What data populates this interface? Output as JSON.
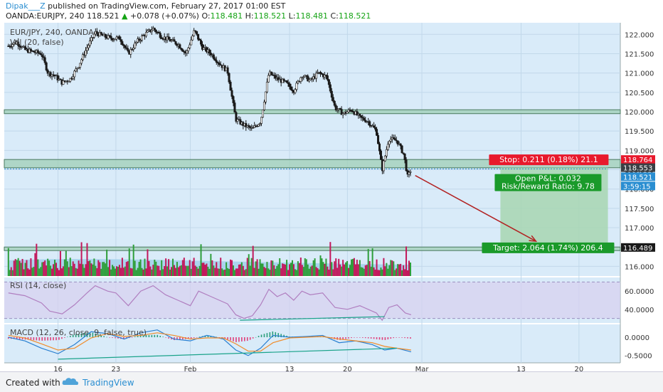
{
  "header": {
    "author": "Dipak___Z",
    "published": " published on TradingView.com, February 27, 2017 01:00 EST",
    "symbol": "OANDA:EURJPY, 240",
    "last": "118.521",
    "change": "+0.078 (+0.07%)",
    "o_label": "O:",
    "o": "118.481",
    "h_label": "H:",
    "h": "118.521",
    "l_label": "L:",
    "l": "118.481",
    "c_label": "C:",
    "c": "118.521"
  },
  "legend": {
    "main": "EUR/JPY, 240, OANDA",
    "vol": "Vol (20, false)",
    "rsi": "RSI (14, close)",
    "macd": "MACD (12, 26, close, 9, false, true)"
  },
  "labels": {
    "stop": "Stop: 0.211 (0.18%) 21.1",
    "pnl": "Open P&L: 0.032",
    "rr": "Risk/Reward Ratio: 9.78",
    "target": "Target: 2.064 (1.74%) 206.4",
    "badge_stop": "118.764",
    "badge_entry": "118.553",
    "badge_last": "118.521",
    "badge_timer": "3:59:15",
    "badge_target": "116.489"
  },
  "footer": {
    "created": "Created with",
    "brand": "TradingView"
  },
  "colors": {
    "pane_bg": "#d9ebf9",
    "zone": "#9fcfb6",
    "candle": "#1a1a1a",
    "vol_up": "#2e9e3a",
    "vol_down": "#c2185b",
    "vol_ma": "#9ed0ea",
    "rsi_line": "#b07fc0",
    "rsi_band": "#d7d0f0",
    "macd_line": "#2a7fd0",
    "signal_line": "#f08c2a",
    "stop_box": "#e8192c",
    "target_box": "#1a9a2a",
    "target_zone": "#a7d6b2",
    "arrow": "#b22222"
  },
  "chart_data": {
    "type": "candlestick",
    "symbol": "EUR/JPY",
    "timeframe": "240",
    "price_axis": {
      "ticks": [
        122.0,
        121.5,
        121.0,
        120.5,
        120.0,
        119.5,
        119.0,
        118.5,
        118.0,
        117.5,
        117.0,
        116.5,
        116.0
      ],
      "labels": [
        "122.000",
        "121.500",
        "121.000",
        "120.500",
        "120.000",
        "119.500",
        "119.000",
        "118.500",
        "118.000",
        "117.500",
        "117.000",
        "116.500",
        "116.000"
      ]
    },
    "x_tick_labels": [
      "16",
      "23",
      "Feb",
      "13",
      "20",
      "Mar",
      "13",
      "20"
    ],
    "x_tick_positions": [
      16,
      23,
      32,
      44,
      51,
      60,
      72,
      79
    ],
    "range": {
      "x": [
        9.5,
        84
      ],
      "price": [
        115.75,
        122.3
      ]
    },
    "close_path": [
      {
        "x": 10,
        "y": 121.7
      },
      {
        "x": 11,
        "y": 121.8
      },
      {
        "x": 12,
        "y": 121.6
      },
      {
        "x": 13,
        "y": 121.55
      },
      {
        "x": 14,
        "y": 121.5
      },
      {
        "x": 14.8,
        "y": 121.0
      },
      {
        "x": 15.5,
        "y": 120.95
      },
      {
        "x": 16.5,
        "y": 120.75
      },
      {
        "x": 17.5,
        "y": 120.85
      },
      {
        "x": 18.5,
        "y": 121.2
      },
      {
        "x": 19.5,
        "y": 121.65
      },
      {
        "x": 20.5,
        "y": 122.05
      },
      {
        "x": 21.5,
        "y": 121.95
      },
      {
        "x": 22.5,
        "y": 121.9
      },
      {
        "x": 23.5,
        "y": 121.9
      },
      {
        "x": 24.5,
        "y": 121.5
      },
      {
        "x": 25.5,
        "y": 121.8
      },
      {
        "x": 26.5,
        "y": 122.0
      },
      {
        "x": 27.5,
        "y": 122.15
      },
      {
        "x": 28.5,
        "y": 121.95
      },
      {
        "x": 29.5,
        "y": 121.85
      },
      {
        "x": 30.5,
        "y": 121.75
      },
      {
        "x": 31.5,
        "y": 121.5
      },
      {
        "x": 32.5,
        "y": 122.1
      },
      {
        "x": 33.5,
        "y": 121.65
      },
      {
        "x": 34.5,
        "y": 121.5
      },
      {
        "x": 35.5,
        "y": 121.25
      },
      {
        "x": 36.5,
        "y": 121.05
      },
      {
        "x": 37.5,
        "y": 119.8
      },
      {
        "x": 38.5,
        "y": 119.65
      },
      {
        "x": 39.5,
        "y": 119.55
      },
      {
        "x": 40.5,
        "y": 119.75
      },
      {
        "x": 41.5,
        "y": 121.0
      },
      {
        "x": 42.5,
        "y": 120.85
      },
      {
        "x": 43.5,
        "y": 120.75
      },
      {
        "x": 44.5,
        "y": 120.55
      },
      {
        "x": 45.5,
        "y": 120.95
      },
      {
        "x": 46.5,
        "y": 120.8
      },
      {
        "x": 47.5,
        "y": 121.0
      },
      {
        "x": 48.5,
        "y": 120.9
      },
      {
        "x": 49.5,
        "y": 120.1
      },
      {
        "x": 50.5,
        "y": 119.95
      },
      {
        "x": 51.5,
        "y": 120.05
      },
      {
        "x": 52.5,
        "y": 119.85
      },
      {
        "x": 53.5,
        "y": 119.75
      },
      {
        "x": 54.5,
        "y": 119.5
      },
      {
        "x": 55.2,
        "y": 118.5
      },
      {
        "x": 56.0,
        "y": 119.3
      },
      {
        "x": 57.0,
        "y": 119.25
      },
      {
        "x": 57.8,
        "y": 118.9
      },
      {
        "x": 58.3,
        "y": 118.3
      },
      {
        "x": 58.7,
        "y": 118.52
      }
    ],
    "zones": [
      {
        "from": 119.95,
        "to": 120.05
      },
      {
        "from": 118.55,
        "to": 118.764
      },
      {
        "from": 116.45,
        "to": 116.5
      }
    ],
    "position": {
      "entry": 118.553,
      "stop": 118.764,
      "target": 116.489,
      "last": 118.521,
      "start_x": 69.5,
      "end_x": 82.5
    },
    "arrow": {
      "from": {
        "x": 59.2,
        "y": 118.35
      },
      "to": {
        "x": 73.8,
        "y": 116.65
      }
    },
    "rsi": {
      "axis_ticks": [
        60,
        40
      ],
      "axis_labels": [
        "60.0000",
        "40.0000"
      ],
      "band": [
        30,
        70
      ],
      "range": [
        25,
        75
      ],
      "path": [
        {
          "x": 10,
          "y": 58
        },
        {
          "x": 12,
          "y": 55
        },
        {
          "x": 14,
          "y": 47
        },
        {
          "x": 15,
          "y": 38
        },
        {
          "x": 16.5,
          "y": 35
        },
        {
          "x": 18,
          "y": 45
        },
        {
          "x": 19.5,
          "y": 58
        },
        {
          "x": 20.5,
          "y": 66
        },
        {
          "x": 22,
          "y": 60
        },
        {
          "x": 23,
          "y": 58
        },
        {
          "x": 24.5,
          "y": 44
        },
        {
          "x": 26,
          "y": 60
        },
        {
          "x": 27.5,
          "y": 66
        },
        {
          "x": 29,
          "y": 56
        },
        {
          "x": 30.5,
          "y": 50
        },
        {
          "x": 32,
          "y": 44
        },
        {
          "x": 33,
          "y": 60
        },
        {
          "x": 34.5,
          "y": 54
        },
        {
          "x": 35.5,
          "y": 50
        },
        {
          "x": 36.5,
          "y": 46
        },
        {
          "x": 37.5,
          "y": 34
        },
        {
          "x": 38.5,
          "y": 30
        },
        {
          "x": 39.5,
          "y": 33
        },
        {
          "x": 40.5,
          "y": 45
        },
        {
          "x": 41.5,
          "y": 62
        },
        {
          "x": 42.5,
          "y": 54
        },
        {
          "x": 43.5,
          "y": 58
        },
        {
          "x": 44.5,
          "y": 50
        },
        {
          "x": 45.5,
          "y": 60
        },
        {
          "x": 46.5,
          "y": 56
        },
        {
          "x": 48,
          "y": 58
        },
        {
          "x": 49.5,
          "y": 42
        },
        {
          "x": 51,
          "y": 40
        },
        {
          "x": 52.5,
          "y": 44
        },
        {
          "x": 53.5,
          "y": 40
        },
        {
          "x": 54.5,
          "y": 36
        },
        {
          "x": 55.2,
          "y": 28
        },
        {
          "x": 56,
          "y": 42
        },
        {
          "x": 57,
          "y": 45
        },
        {
          "x": 58,
          "y": 36
        },
        {
          "x": 58.7,
          "y": 34
        }
      ],
      "divergence": [
        {
          "x": 38,
          "y": 28
        },
        {
          "x": 55.5,
          "y": 32
        }
      ]
    },
    "macd": {
      "axis_ticks": [
        0.0,
        -0.5
      ],
      "axis_labels": [
        "0.0000",
        "-0.5000"
      ],
      "range": [
        -0.7,
        0.35
      ],
      "macd_path": [
        {
          "x": 10,
          "y": 0.0
        },
        {
          "x": 12,
          "y": -0.1
        },
        {
          "x": 14,
          "y": -0.3
        },
        {
          "x": 16,
          "y": -0.45
        },
        {
          "x": 18,
          "y": -0.2
        },
        {
          "x": 20,
          "y": 0.15
        },
        {
          "x": 22,
          "y": 0.1
        },
        {
          "x": 24,
          "y": -0.05
        },
        {
          "x": 26,
          "y": 0.12
        },
        {
          "x": 28,
          "y": 0.2
        },
        {
          "x": 30,
          "y": -0.05
        },
        {
          "x": 32,
          "y": -0.1
        },
        {
          "x": 34,
          "y": 0.05
        },
        {
          "x": 36,
          "y": -0.05
        },
        {
          "x": 37.5,
          "y": -0.35
        },
        {
          "x": 39,
          "y": -0.5
        },
        {
          "x": 40.5,
          "y": -0.3
        },
        {
          "x": 42,
          "y": 0.05
        },
        {
          "x": 44,
          "y": 0.0
        },
        {
          "x": 46,
          "y": 0.02
        },
        {
          "x": 48,
          "y": 0.05
        },
        {
          "x": 50,
          "y": -0.15
        },
        {
          "x": 52,
          "y": -0.1
        },
        {
          "x": 54,
          "y": -0.2
        },
        {
          "x": 55.5,
          "y": -0.35
        },
        {
          "x": 57,
          "y": -0.3
        },
        {
          "x": 58.7,
          "y": -0.4
        }
      ],
      "signal_path": [
        {
          "x": 10,
          "y": 0.05
        },
        {
          "x": 12,
          "y": -0.02
        },
        {
          "x": 14,
          "y": -0.18
        },
        {
          "x": 16,
          "y": -0.35
        },
        {
          "x": 18,
          "y": -0.3
        },
        {
          "x": 20,
          "y": -0.02
        },
        {
          "x": 22,
          "y": 0.1
        },
        {
          "x": 24,
          "y": 0.02
        },
        {
          "x": 26,
          "y": 0.05
        },
        {
          "x": 28,
          "y": 0.12
        },
        {
          "x": 30,
          "y": 0.05
        },
        {
          "x": 32,
          "y": -0.05
        },
        {
          "x": 34,
          "y": -0.02
        },
        {
          "x": 36,
          "y": -0.02
        },
        {
          "x": 37.5,
          "y": -0.18
        },
        {
          "x": 39,
          "y": -0.38
        },
        {
          "x": 40.5,
          "y": -0.38
        },
        {
          "x": 42,
          "y": -0.15
        },
        {
          "x": 44,
          "y": -0.02
        },
        {
          "x": 46,
          "y": 0.0
        },
        {
          "x": 48,
          "y": 0.02
        },
        {
          "x": 50,
          "y": -0.05
        },
        {
          "x": 52,
          "y": -0.1
        },
        {
          "x": 54,
          "y": -0.15
        },
        {
          "x": 55.5,
          "y": -0.25
        },
        {
          "x": 57,
          "y": -0.3
        },
        {
          "x": 58.7,
          "y": -0.35
        }
      ],
      "divergence": [
        {
          "x": 16,
          "y": -0.6
        },
        {
          "x": 57,
          "y": -0.3
        }
      ]
    }
  }
}
